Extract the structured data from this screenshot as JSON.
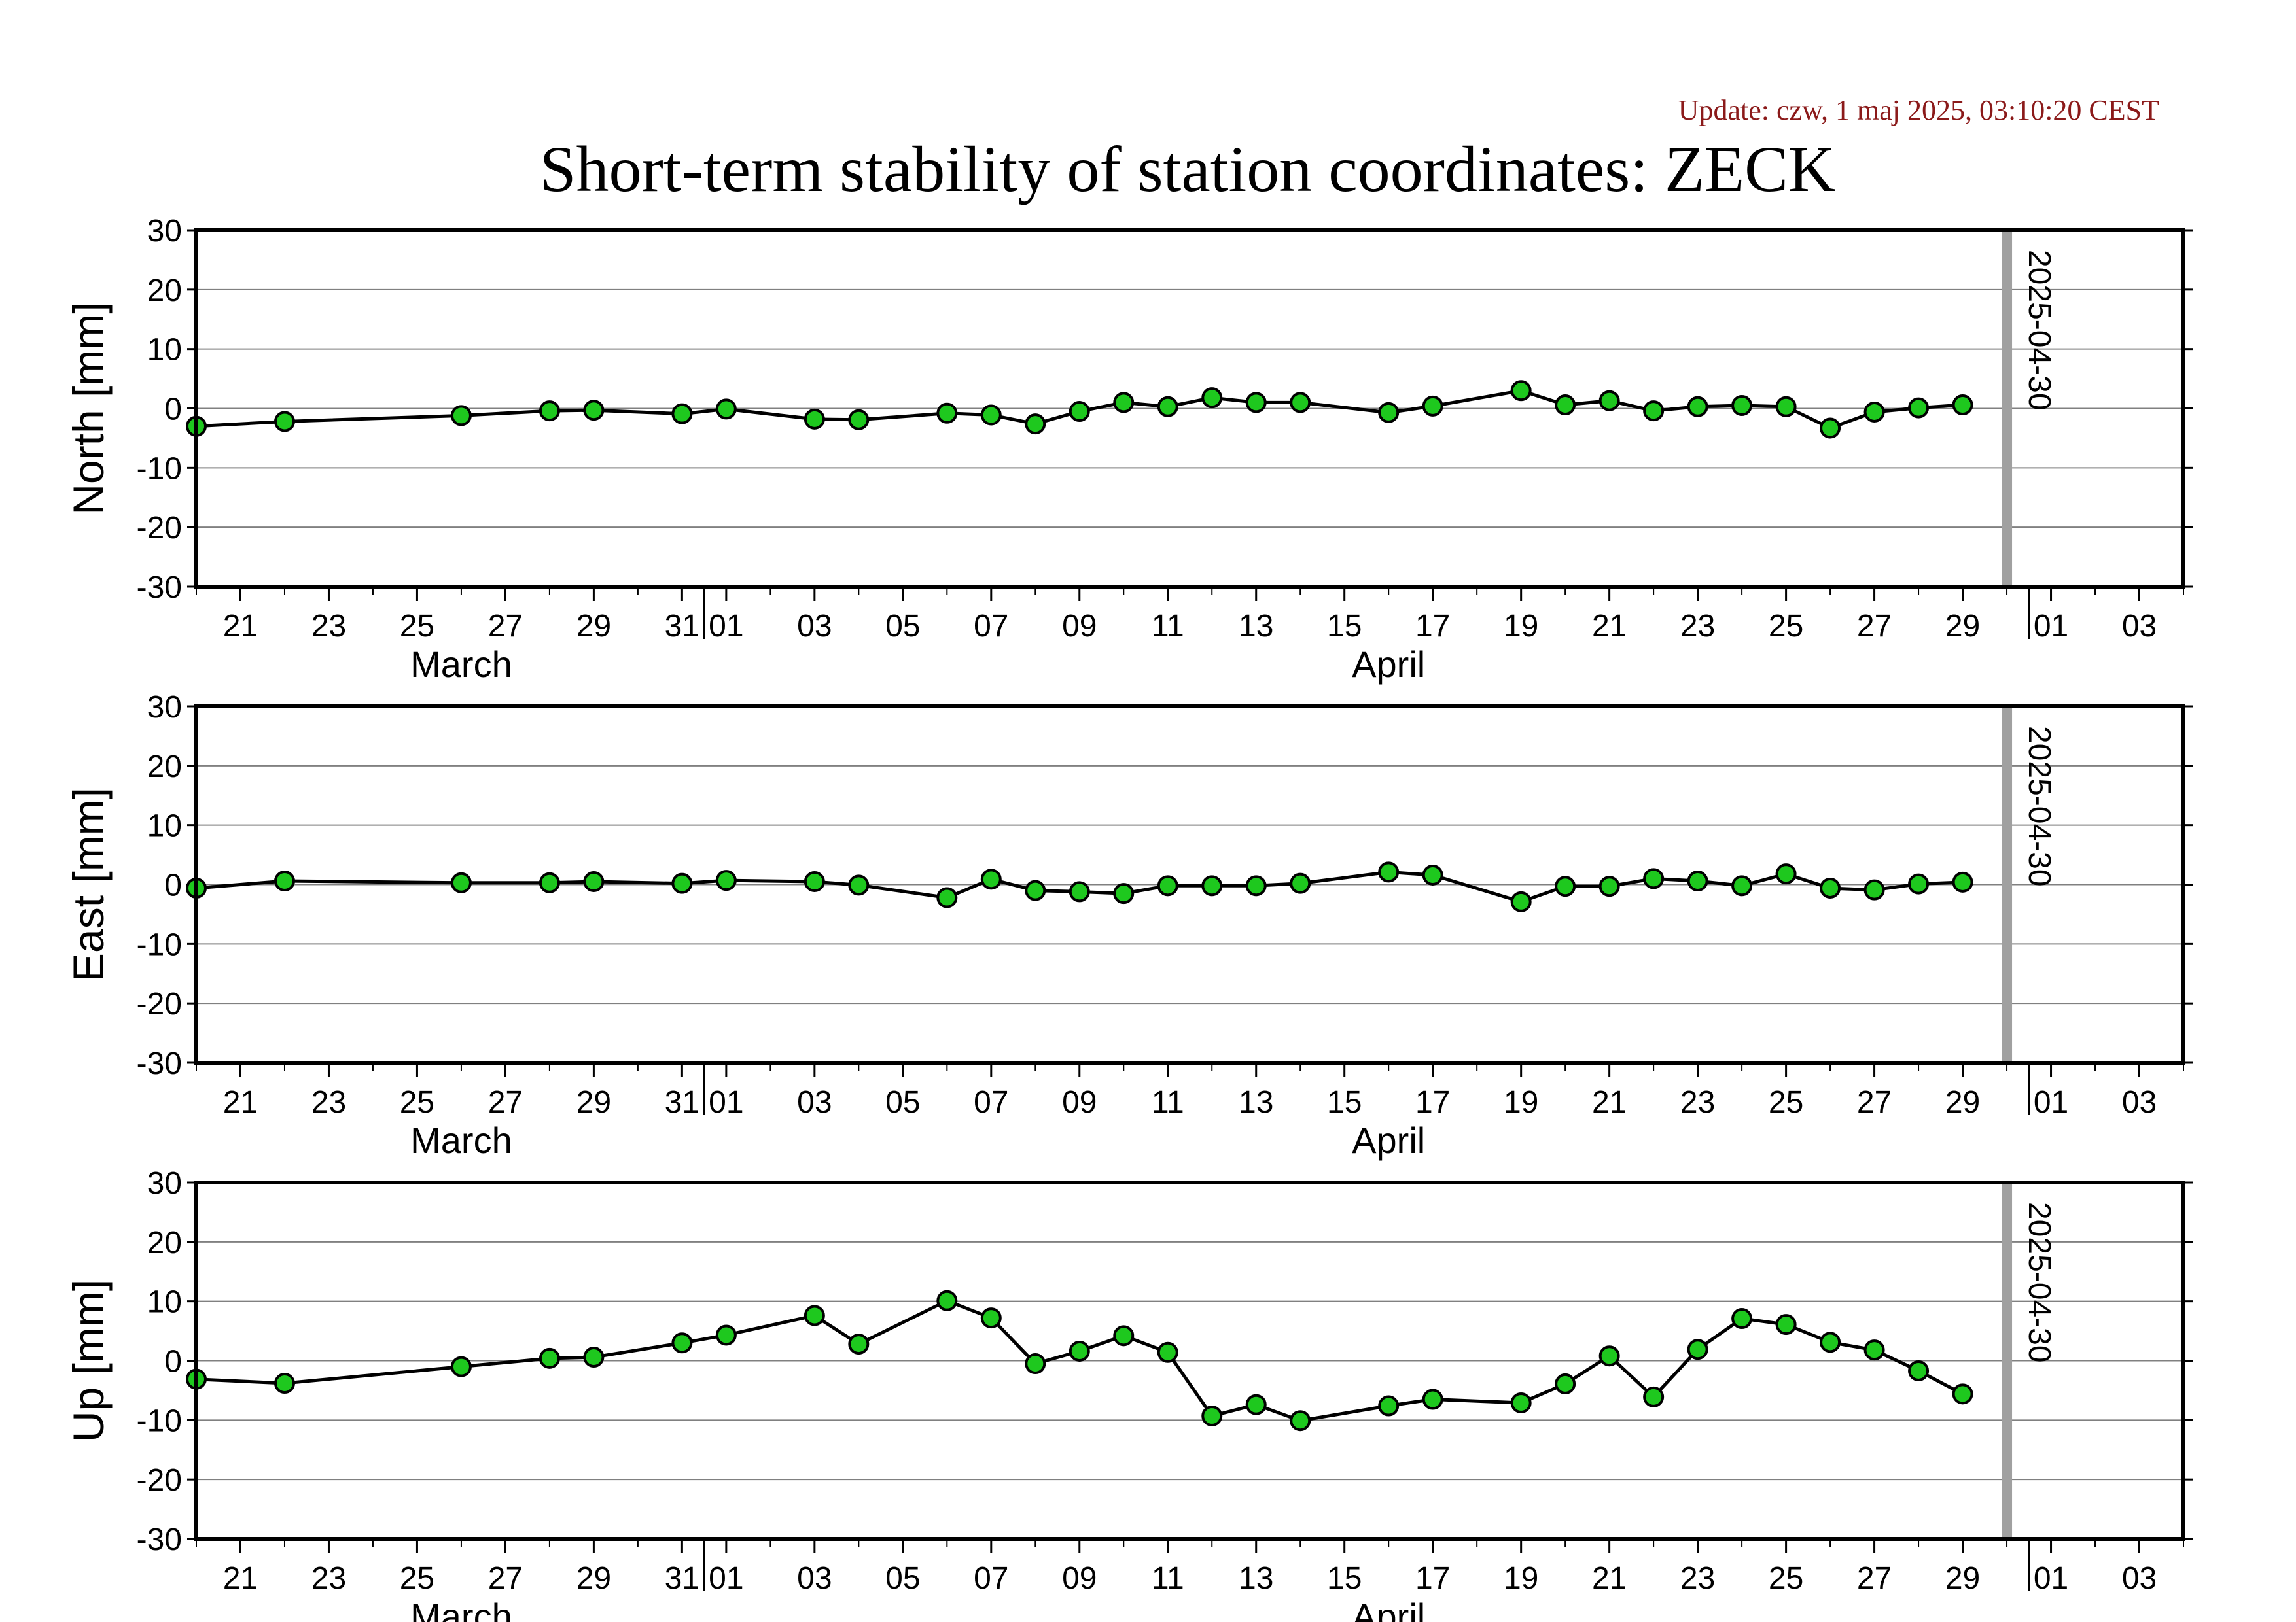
{
  "update_text": "Update: czw, 1 maj 2025, 03:10:20 CEST",
  "title": "Short-term stability of station coordinates: ZECK",
  "marker_date": "2025-04-30",
  "colors": {
    "point_fill": "#1ec81e",
    "line": "#000000",
    "marker_line": "#a0a0a0",
    "grid": "#808080",
    "update": "#8b1a1a"
  },
  "chart_data": [
    {
      "type": "line",
      "ylabel": "North [mm]",
      "ylim": [
        -30,
        30
      ],
      "yticks": [
        -30,
        -20,
        -10,
        0,
        10,
        20,
        30
      ],
      "xlim": [
        "2025-03-20",
        "2025-05-04"
      ],
      "xtick_labels": [
        "21",
        "23",
        "25",
        "27",
        "29",
        "31",
        "01",
        "03",
        "05",
        "07",
        "09",
        "11",
        "13",
        "15",
        "17",
        "19",
        "21",
        "23",
        "25",
        "27",
        "29",
        "01",
        "03"
      ],
      "months": [
        "March",
        "April"
      ],
      "grid": true,
      "series": [
        {
          "x": [
            "2025-03-20",
            "2025-03-22",
            "2025-03-26",
            "2025-03-28",
            "2025-03-29",
            "2025-03-31",
            "2025-04-01",
            "2025-04-03",
            "2025-04-04",
            "2025-04-06",
            "2025-04-07",
            "2025-04-08",
            "2025-04-09",
            "2025-04-10",
            "2025-04-11",
            "2025-04-12",
            "2025-04-13",
            "2025-04-14",
            "2025-04-16",
            "2025-04-17",
            "2025-04-19",
            "2025-04-20",
            "2025-04-21",
            "2025-04-22",
            "2025-04-23",
            "2025-04-24",
            "2025-04-25",
            "2025-04-26",
            "2025-04-27",
            "2025-04-28",
            "2025-04-29"
          ],
          "y": [
            -3.0,
            -2.2,
            -1.2,
            -0.4,
            -0.3,
            -0.9,
            -0.1,
            -1.8,
            -1.9,
            -0.8,
            -1.1,
            -2.6,
            -0.5,
            1.0,
            0.3,
            1.8,
            1.0,
            1.0,
            -0.7,
            0.4,
            3.0,
            0.6,
            1.3,
            -0.4,
            0.3,
            0.5,
            0.3,
            -3.3,
            -0.6,
            0.1,
            0.6
          ]
        }
      ]
    },
    {
      "type": "line",
      "ylabel": "East [mm]",
      "ylim": [
        -30,
        30
      ],
      "yticks": [
        -30,
        -20,
        -10,
        0,
        10,
        20,
        30
      ],
      "xlim": [
        "2025-03-20",
        "2025-05-04"
      ],
      "xtick_labels": [
        "21",
        "23",
        "25",
        "27",
        "29",
        "31",
        "01",
        "03",
        "05",
        "07",
        "09",
        "11",
        "13",
        "15",
        "17",
        "19",
        "21",
        "23",
        "25",
        "27",
        "29",
        "01",
        "03"
      ],
      "months": [
        "March",
        "April"
      ],
      "grid": true,
      "series": [
        {
          "x": [
            "2025-03-20",
            "2025-03-22",
            "2025-03-26",
            "2025-03-28",
            "2025-03-29",
            "2025-03-31",
            "2025-04-01",
            "2025-04-03",
            "2025-04-04",
            "2025-04-06",
            "2025-04-07",
            "2025-04-08",
            "2025-04-09",
            "2025-04-10",
            "2025-04-11",
            "2025-04-12",
            "2025-04-13",
            "2025-04-14",
            "2025-04-16",
            "2025-04-17",
            "2025-04-19",
            "2025-04-20",
            "2025-04-21",
            "2025-04-22",
            "2025-04-23",
            "2025-04-24",
            "2025-04-25",
            "2025-04-26",
            "2025-04-27",
            "2025-04-28",
            "2025-04-29"
          ],
          "y": [
            -0.6,
            0.6,
            0.3,
            0.3,
            0.5,
            0.2,
            0.7,
            0.5,
            -0.1,
            -2.2,
            0.9,
            -1.0,
            -1.2,
            -1.5,
            -0.2,
            -0.2,
            -0.2,
            0.2,
            2.1,
            1.6,
            -2.9,
            -0.3,
            -0.3,
            1.0,
            0.6,
            -0.2,
            1.8,
            -0.6,
            -0.9,
            0.1,
            0.4
          ]
        }
      ]
    },
    {
      "type": "line",
      "ylabel": "Up [mm]",
      "ylim": [
        -30,
        30
      ],
      "yticks": [
        -30,
        -20,
        -10,
        0,
        10,
        20,
        30
      ],
      "xlim": [
        "2025-03-20",
        "2025-05-04"
      ],
      "xtick_labels": [
        "21",
        "23",
        "25",
        "27",
        "29",
        "31",
        "01",
        "03",
        "05",
        "07",
        "09",
        "11",
        "13",
        "15",
        "17",
        "19",
        "21",
        "23",
        "25",
        "27",
        "29",
        "01",
        "03"
      ],
      "months": [
        "March",
        "April"
      ],
      "grid": true,
      "series": [
        {
          "x": [
            "2025-03-20",
            "2025-03-22",
            "2025-03-26",
            "2025-03-28",
            "2025-03-29",
            "2025-03-31",
            "2025-04-01",
            "2025-04-03",
            "2025-04-04",
            "2025-04-06",
            "2025-04-07",
            "2025-04-08",
            "2025-04-09",
            "2025-04-10",
            "2025-04-11",
            "2025-04-12",
            "2025-04-13",
            "2025-04-14",
            "2025-04-16",
            "2025-04-17",
            "2025-04-19",
            "2025-04-20",
            "2025-04-21",
            "2025-04-22",
            "2025-04-23",
            "2025-04-24",
            "2025-04-25",
            "2025-04-26",
            "2025-04-27",
            "2025-04-28",
            "2025-04-29"
          ],
          "y": [
            -3.1,
            -3.8,
            -1.0,
            0.4,
            0.6,
            3.0,
            4.3,
            7.6,
            2.8,
            10.1,
            7.2,
            -0.5,
            1.6,
            4.2,
            1.4,
            -9.3,
            -7.4,
            -10.1,
            -7.6,
            -6.5,
            -7.1,
            -3.9,
            0.8,
            -6.1,
            1.9,
            7.1,
            6.1,
            3.1,
            1.8,
            -1.7,
            -5.6
          ]
        }
      ]
    }
  ]
}
